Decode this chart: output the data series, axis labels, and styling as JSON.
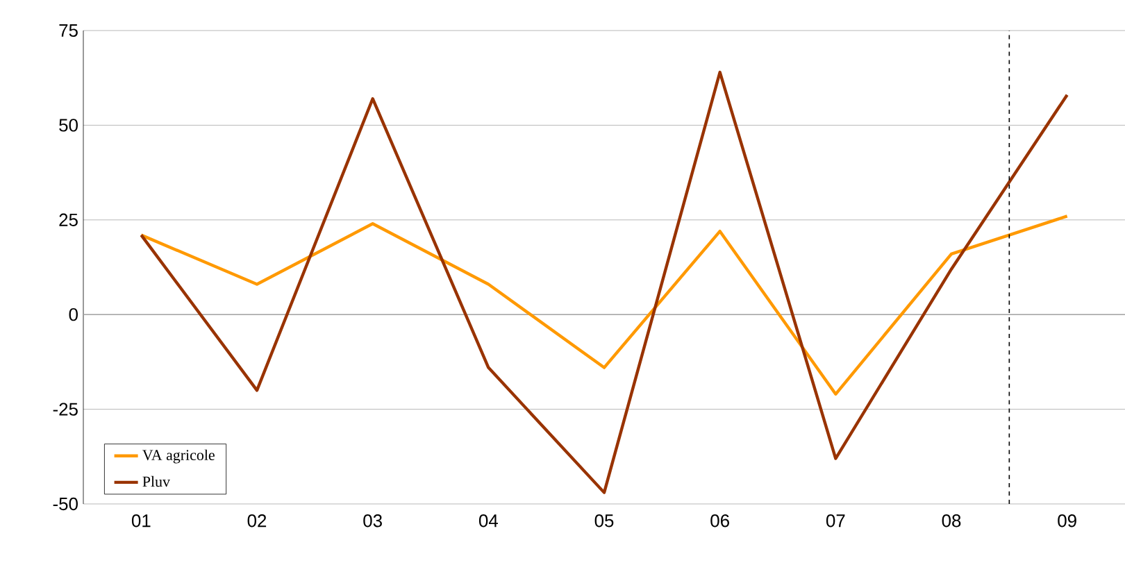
{
  "chart_data": {
    "type": "line",
    "x": [
      1,
      2,
      3,
      4,
      5,
      6,
      7,
      8,
      9
    ],
    "series": [
      {
        "name": "VA agricole",
        "color": "#ff9900",
        "values": [
          21,
          8,
          24,
          8,
          -14,
          22,
          -21,
          16,
          26
        ]
      },
      {
        "name": "Pluv",
        "color": "#993300",
        "values": [
          21,
          -20,
          57,
          -14,
          -47,
          64,
          -38,
          12,
          58
        ]
      }
    ],
    "xlim": [
      0.5,
      9.5
    ],
    "xticks": [
      {
        "value": 1,
        "label": "01"
      },
      {
        "value": 2,
        "label": "02"
      },
      {
        "value": 3,
        "label": "03"
      },
      {
        "value": 4,
        "label": "04"
      },
      {
        "value": 5,
        "label": "05"
      },
      {
        "value": 6,
        "label": "06"
      },
      {
        "value": 7,
        "label": "07"
      },
      {
        "value": 8,
        "label": "08"
      },
      {
        "value": 9,
        "label": "09"
      }
    ],
    "ylim": [
      -50,
      75
    ],
    "yticks": [
      -50,
      -25,
      0,
      25,
      50,
      75
    ],
    "grid": "y",
    "legend": "bottom left",
    "marker": "none",
    "line_style": "solid",
    "ref_lines": [
      {
        "axis": "x",
        "value": 8.5,
        "color": "#000000",
        "line_style": "dashed"
      }
    ]
  }
}
